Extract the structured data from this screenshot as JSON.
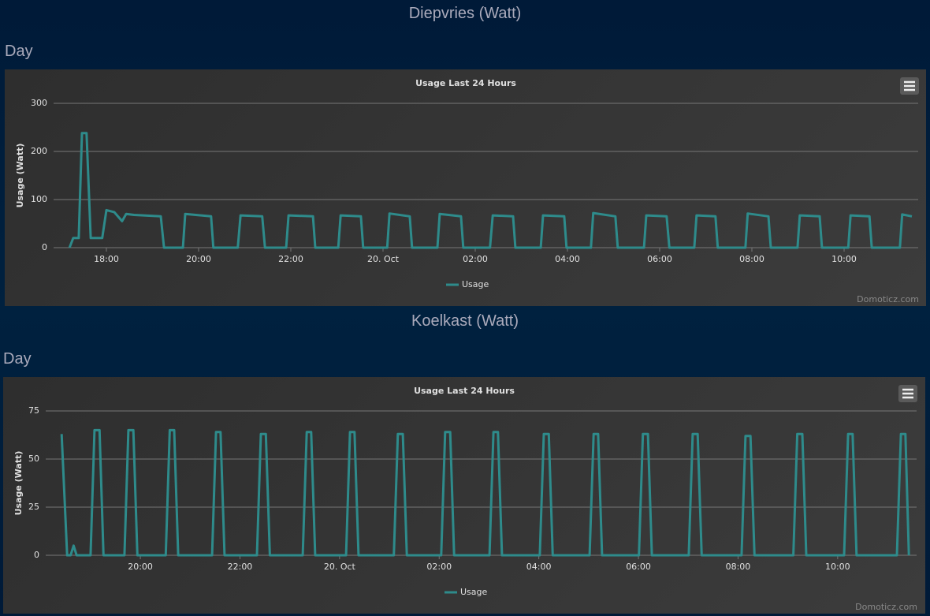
{
  "sections": [
    {
      "heading": "Diepvries (Watt)",
      "period": "Day"
    },
    {
      "heading": "Koelkast (Watt)",
      "period": "Day"
    }
  ],
  "chart_data": [
    {
      "type": "line",
      "title": "Usage Last 24 Hours",
      "ylabel": "Usage (Watt)",
      "credits": "Domoticz.com",
      "x": [
        17.2,
        17.28,
        17.4,
        17.47,
        17.57,
        17.66,
        17.91,
        18.0,
        18.17,
        18.34,
        18.43,
        18.6,
        19.18,
        19.25,
        19.66,
        19.71,
        20.27,
        20.32,
        20.85,
        20.91,
        21.38,
        21.44,
        21.9,
        21.95,
        22.48,
        22.53,
        23.03,
        23.08,
        23.52,
        23.57,
        24.09,
        24.14,
        24.58,
        24.63,
        25.18,
        25.23,
        25.69,
        25.74,
        26.32,
        26.38,
        26.82,
        26.87,
        27.42,
        27.47,
        27.93,
        27.98,
        28.51,
        28.56,
        29.04,
        29.09,
        29.66,
        29.71,
        30.15,
        30.21,
        30.75,
        30.8,
        31.21,
        31.26,
        31.86,
        31.91,
        32.36,
        32.41,
        32.99,
        33.04,
        33.47,
        33.52,
        34.09,
        34.14,
        34.55,
        34.6,
        35.21,
        35.26,
        35.47
      ],
      "series": [
        {
          "name": "Usage",
          "color": "#2e8b8b",
          "values": [
            0,
            20,
            20,
            238,
            238,
            20,
            20,
            78,
            74,
            55,
            70,
            68,
            65,
            0,
            0,
            70,
            65,
            0,
            0,
            67,
            65,
            0,
            0,
            67,
            65,
            0,
            0,
            67,
            65,
            0,
            0,
            71,
            65,
            0,
            0,
            70,
            65,
            0,
            0,
            67,
            65,
            0,
            0,
            67,
            65,
            0,
            0,
            72,
            65,
            0,
            0,
            67,
            65,
            0,
            0,
            67,
            65,
            0,
            0,
            71,
            65,
            0,
            0,
            67,
            65,
            0,
            0,
            67,
            65,
            0,
            0,
            69,
            65
          ]
        }
      ],
      "xlim": [
        16.855,
        35.607
      ],
      "ylim": [
        0,
        300
      ],
      "yticks": [
        0,
        100,
        200,
        300
      ],
      "xticks": [
        {
          "value": 18,
          "label": "18:00"
        },
        {
          "value": 20,
          "label": "20:00"
        },
        {
          "value": 22,
          "label": "22:00"
        },
        {
          "value": 24,
          "label": "20. Oct"
        },
        {
          "value": 26,
          "label": "02:00"
        },
        {
          "value": 28,
          "label": "04:00"
        },
        {
          "value": 30,
          "label": "06:00"
        },
        {
          "value": 32,
          "label": "08:00"
        },
        {
          "value": 34,
          "label": "10:00"
        }
      ],
      "grid": true
    },
    {
      "type": "line",
      "title": "Usage Last 24 Hours",
      "ylabel": "Usage (Watt)",
      "credits": "Domoticz.com",
      "x": [
        18.42,
        18.53,
        18.6,
        18.66,
        18.72,
        19.0,
        19.08,
        19.18,
        19.26,
        19.68,
        19.76,
        19.86,
        19.94,
        20.51,
        20.59,
        20.68,
        20.76,
        21.44,
        21.52,
        21.61,
        21.69,
        22.34,
        22.42,
        22.52,
        22.6,
        23.26,
        23.34,
        23.43,
        23.51,
        24.13,
        24.21,
        24.3,
        24.38,
        25.09,
        25.17,
        25.27,
        25.35,
        26.04,
        26.12,
        26.22,
        26.3,
        27.01,
        27.09,
        27.18,
        27.26,
        28.02,
        28.1,
        28.2,
        28.28,
        29.02,
        29.1,
        29.19,
        29.27,
        30.01,
        30.09,
        30.19,
        30.27,
        31.01,
        31.09,
        31.19,
        31.27,
        32.07,
        32.15,
        32.25,
        32.33,
        33.11,
        33.19,
        33.29,
        33.37,
        34.13,
        34.21,
        34.3,
        34.38,
        35.19,
        35.27,
        35.36,
        35.43
      ],
      "series": [
        {
          "name": "Usage",
          "color": "#2e8b8b",
          "values": [
            63,
            0,
            0,
            5,
            0,
            0,
            65,
            65,
            0,
            0,
            65,
            65,
            0,
            0,
            65,
            65,
            0,
            0,
            64,
            64,
            0,
            0,
            63,
            63,
            0,
            0,
            64,
            64,
            0,
            0,
            64,
            64,
            0,
            0,
            63,
            63,
            0,
            0,
            64,
            64,
            0,
            0,
            64,
            64,
            0,
            0,
            63,
            63,
            0,
            0,
            63,
            63,
            0,
            0,
            63,
            63,
            0,
            0,
            63,
            63,
            0,
            0,
            62,
            62,
            0,
            0,
            63,
            63,
            0,
            0,
            63,
            63,
            0,
            0,
            63,
            63,
            0
          ]
        }
      ],
      "xlim": [
        18.1,
        35.585
      ],
      "ylim": [
        0,
        75
      ],
      "yticks": [
        0,
        25,
        50,
        75
      ],
      "xticks": [
        {
          "value": 20,
          "label": "20:00"
        },
        {
          "value": 22,
          "label": "22:00"
        },
        {
          "value": 24,
          "label": "20. Oct"
        },
        {
          "value": 26,
          "label": "02:00"
        },
        {
          "value": 28,
          "label": "04:00"
        },
        {
          "value": 30,
          "label": "06:00"
        },
        {
          "value": 32,
          "label": "08:00"
        },
        {
          "value": 34,
          "label": "10:00"
        }
      ],
      "grid": true
    }
  ]
}
